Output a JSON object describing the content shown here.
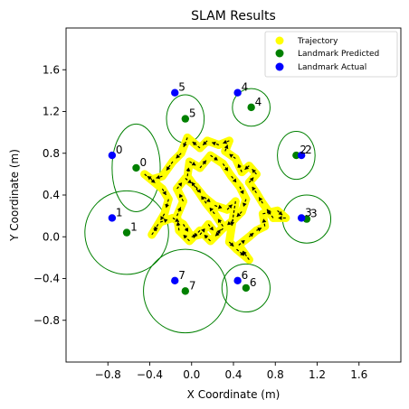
{
  "chart_data": {
    "type": "scatter",
    "title": "SLAM Results",
    "xlabel": "X Coordinate (m)",
    "ylabel": "Y Coordinate (m)",
    "xlim": [
      -1.2,
      2.0
    ],
    "ylim": [
      -1.2,
      2.0
    ],
    "xticks": [
      -0.8,
      -0.4,
      0.0,
      0.4,
      0.8,
      1.2,
      1.6
    ],
    "yticks": [
      -0.8,
      -0.4,
      0.0,
      0.4,
      0.8,
      1.2,
      1.6
    ],
    "xtick_labels": [
      "−0.8",
      "−0.4",
      "0.0",
      "0.4",
      "0.8",
      "1.2",
      "1.6"
    ],
    "ytick_labels": [
      "−0.8",
      "−0.4",
      "0.0",
      "0.4",
      "0.8",
      "1.2",
      "1.6"
    ],
    "grid": false,
    "legend_position": "top-right",
    "legend": [
      {
        "label": "Trajectory",
        "color": "#ffff00"
      },
      {
        "label": "Landmark Predicted",
        "color": "#008000"
      },
      {
        "label": "Landmark Actual",
        "color": "#0000ff"
      }
    ],
    "colors": {
      "trajectory": "#ffff00",
      "predicted": "#008000",
      "actual": "#0000ff",
      "arrow": "#000000"
    },
    "landmarks_actual": [
      {
        "id": "0",
        "x": -0.76,
        "y": 0.78
      },
      {
        "id": "1",
        "x": -0.76,
        "y": 0.18
      },
      {
        "id": "2",
        "x": 1.05,
        "y": 0.78
      },
      {
        "id": "3",
        "x": 1.05,
        "y": 0.18
      },
      {
        "id": "4",
        "x": 0.44,
        "y": 1.38
      },
      {
        "id": "5",
        "x": -0.16,
        "y": 1.38
      },
      {
        "id": "6",
        "x": 0.44,
        "y": -0.42
      },
      {
        "id": "7",
        "x": -0.16,
        "y": -0.42
      }
    ],
    "landmarks_predicted": [
      {
        "id": "0",
        "x": -0.53,
        "y": 0.66,
        "uncertainty_radius_x": 0.23,
        "uncertainty_radius_y": 0.42
      },
      {
        "id": "1",
        "x": -0.62,
        "y": 0.04,
        "uncertainty_radius_x": 0.4,
        "uncertainty_radius_y": 0.4
      },
      {
        "id": "2",
        "x": 1.0,
        "y": 0.78,
        "uncertainty_radius_x": 0.18,
        "uncertainty_radius_y": 0.23
      },
      {
        "id": "3",
        "x": 1.1,
        "y": 0.17,
        "uncertainty_radius_x": 0.23,
        "uncertainty_radius_y": 0.23
      },
      {
        "id": "4",
        "x": 0.57,
        "y": 1.24,
        "uncertainty_radius_x": 0.18,
        "uncertainty_radius_y": 0.18
      },
      {
        "id": "5",
        "x": -0.06,
        "y": 1.13,
        "uncertainty_radius_x": 0.18,
        "uncertainty_radius_y": 0.23
      },
      {
        "id": "6",
        "x": 0.52,
        "y": -0.49,
        "uncertainty_radius_x": 0.23,
        "uncertainty_radius_y": 0.23
      },
      {
        "id": "7",
        "x": -0.06,
        "y": -0.52,
        "uncertainty_radius_x": 0.4,
        "uncertainty_radius_y": 0.4
      }
    ],
    "trajectory": [
      {
        "x": 0.36,
        "y": -0.05
      },
      {
        "x": 0.43,
        "y": -0.12
      },
      {
        "x": 0.55,
        "y": -0.22
      },
      {
        "x": 0.45,
        "y": -0.08
      },
      {
        "x": 0.55,
        "y": 0.0
      },
      {
        "x": 0.62,
        "y": 0.06
      },
      {
        "x": 0.7,
        "y": 0.1
      },
      {
        "x": 0.68,
        "y": 0.22
      },
      {
        "x": 0.82,
        "y": 0.25
      },
      {
        "x": 0.9,
        "y": 0.18
      },
      {
        "x": 0.78,
        "y": 0.18
      },
      {
        "x": 0.68,
        "y": 0.32
      },
      {
        "x": 0.62,
        "y": 0.42
      },
      {
        "x": 0.55,
        "y": 0.52
      },
      {
        "x": 0.62,
        "y": 0.6
      },
      {
        "x": 0.55,
        "y": 0.68
      },
      {
        "x": 0.48,
        "y": 0.62
      },
      {
        "x": 0.42,
        "y": 0.75
      },
      {
        "x": 0.32,
        "y": 0.82
      },
      {
        "x": 0.36,
        "y": 0.92
      },
      {
        "x": 0.26,
        "y": 0.88
      },
      {
        "x": 0.15,
        "y": 0.92
      },
      {
        "x": 0.08,
        "y": 0.85
      },
      {
        "x": -0.04,
        "y": 0.95
      },
      {
        "x": -0.1,
        "y": 0.8
      },
      {
        "x": -0.18,
        "y": 0.72
      },
      {
        "x": -0.28,
        "y": 0.58
      },
      {
        "x": -0.38,
        "y": 0.55
      },
      {
        "x": -0.45,
        "y": 0.6
      },
      {
        "x": -0.28,
        "y": 0.46
      },
      {
        "x": -0.22,
        "y": 0.36
      },
      {
        "x": -0.26,
        "y": 0.22
      },
      {
        "x": -0.32,
        "y": 0.12
      },
      {
        "x": -0.38,
        "y": 0.02
      },
      {
        "x": -0.3,
        "y": 0.14
      },
      {
        "x": -0.18,
        "y": 0.18
      },
      {
        "x": -0.08,
        "y": 0.12
      },
      {
        "x": 0.0,
        "y": 0.0
      },
      {
        "x": 0.08,
        "y": 0.02
      },
      {
        "x": 0.16,
        "y": 0.12
      },
      {
        "x": 0.24,
        "y": 0.02
      },
      {
        "x": 0.3,
        "y": 0.1
      },
      {
        "x": 0.22,
        "y": 0.22
      },
      {
        "x": 0.14,
        "y": 0.32
      },
      {
        "x": 0.06,
        "y": 0.44
      },
      {
        "x": -0.04,
        "y": 0.58
      },
      {
        "x": -0.02,
        "y": 0.72
      },
      {
        "x": 0.08,
        "y": 0.66
      },
      {
        "x": 0.18,
        "y": 0.78
      },
      {
        "x": 0.3,
        "y": 0.7
      },
      {
        "x": 0.38,
        "y": 0.58
      },
      {
        "x": 0.46,
        "y": 0.48
      },
      {
        "x": 0.52,
        "y": 0.36
      },
      {
        "x": 0.48,
        "y": 0.24
      },
      {
        "x": 0.4,
        "y": 0.16
      },
      {
        "x": 0.3,
        "y": 0.08
      },
      {
        "x": 0.18,
        "y": -0.04
      },
      {
        "x": 0.08,
        "y": 0.06
      },
      {
        "x": -0.02,
        "y": -0.04
      },
      {
        "x": -0.12,
        "y": 0.06
      },
      {
        "x": -0.14,
        "y": 0.2
      },
      {
        "x": -0.08,
        "y": 0.34
      },
      {
        "x": -0.14,
        "y": 0.46
      },
      {
        "x": -0.06,
        "y": 0.56
      },
      {
        "x": 0.04,
        "y": 0.48
      },
      {
        "x": 0.12,
        "y": 0.38
      },
      {
        "x": 0.22,
        "y": 0.3
      },
      {
        "x": 0.34,
        "y": 0.26
      },
      {
        "x": 0.42,
        "y": 0.34
      },
      {
        "x": 0.36,
        "y": -0.05
      }
    ]
  }
}
